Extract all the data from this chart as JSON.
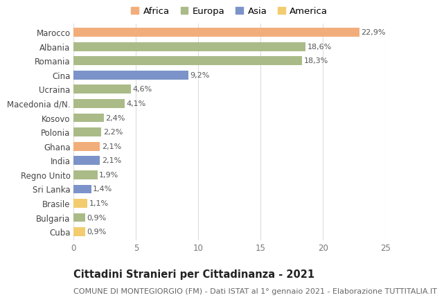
{
  "categories": [
    "Marocco",
    "Albania",
    "Romania",
    "Cina",
    "Ucraina",
    "Macedonia d/N.",
    "Kosovo",
    "Polonia",
    "Ghana",
    "India",
    "Regno Unito",
    "Sri Lanka",
    "Brasile",
    "Bulgaria",
    "Cuba"
  ],
  "values": [
    22.9,
    18.6,
    18.3,
    9.2,
    4.6,
    4.1,
    2.4,
    2.2,
    2.1,
    2.1,
    1.9,
    1.4,
    1.1,
    0.9,
    0.9
  ],
  "labels": [
    "22,9%",
    "18,6%",
    "18,3%",
    "9,2%",
    "4,6%",
    "4,1%",
    "2,4%",
    "2,2%",
    "2,1%",
    "2,1%",
    "1,9%",
    "1,4%",
    "1,1%",
    "0,9%",
    "0,9%"
  ],
  "continents": [
    "Africa",
    "Europa",
    "Europa",
    "Asia",
    "Europa",
    "Europa",
    "Europa",
    "Europa",
    "Africa",
    "Asia",
    "Europa",
    "Asia",
    "America",
    "Europa",
    "America"
  ],
  "colors": {
    "Africa": "#F2AE7A",
    "Europa": "#AABB88",
    "Asia": "#7B93C8",
    "America": "#F2CC6E"
  },
  "legend_order": [
    "Africa",
    "Europa",
    "Asia",
    "America"
  ],
  "title": "Cittadini Stranieri per Cittadinanza - 2021",
  "subtitle": "COMUNE DI MONTEGIORGIO (FM) - Dati ISTAT al 1° gennaio 2021 - Elaborazione TUTTITALIA.IT",
  "xlim": [
    0,
    25
  ],
  "xticks": [
    0,
    5,
    10,
    15,
    20,
    25
  ],
  "background_color": "#ffffff",
  "bar_height": 0.62,
  "title_fontsize": 10.5,
  "subtitle_fontsize": 8,
  "label_fontsize": 8,
  "tick_fontsize": 8.5,
  "legend_fontsize": 9.5
}
